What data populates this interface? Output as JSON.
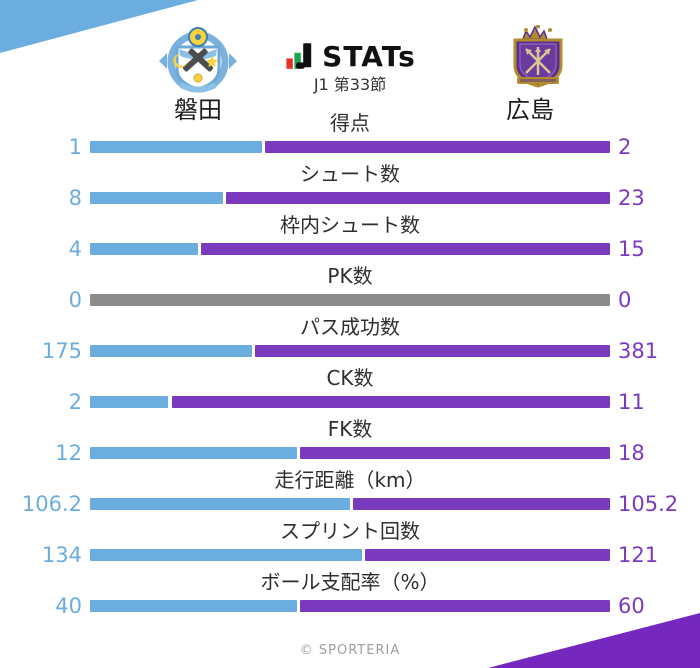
{
  "header": {
    "title": "STATs",
    "round": "J1 第33節",
    "home_team": "磐田",
    "away_team": "広島",
    "home_crest": "jubilo-iwata-crest",
    "away_crest": "sanfrecce-hiroshima-crest"
  },
  "colors": {
    "home": "#6caddf",
    "away": "#7a3abd",
    "neutral": "#8c8c8c",
    "accent_top_left": "#6caddf",
    "accent_bottom_right": "#7527be",
    "jmark_red": "#e8302a",
    "jmark_green": "#17a54d",
    "jmark_black": "#111111"
  },
  "chart_data": {
    "type": "bar",
    "subtype": "split-comparison-horizontal",
    "title": "STATs",
    "subtitle": "J1 第33節",
    "legend_position": "top",
    "grid": false,
    "teams": [
      "磐田",
      "広島"
    ],
    "categories": [
      "得点",
      "シュート数",
      "枠内シュート数",
      "PK数",
      "パス成功数",
      "CK数",
      "FK数",
      "走行距離（km）",
      "スプリント回数",
      "ボール支配率（%）"
    ],
    "series": [
      {
        "name": "磐田",
        "values": [
          1,
          8,
          4,
          0,
          175,
          2,
          12,
          106.2,
          134,
          40
        ]
      },
      {
        "name": "広島",
        "values": [
          2,
          23,
          15,
          0,
          381,
          11,
          18,
          105.2,
          121,
          60
        ]
      }
    ],
    "note": "each bar split proportionally home/(home+away); zero-zero rows shown as neutral gray"
  },
  "footer": {
    "credit": "© SPORTERIA"
  }
}
